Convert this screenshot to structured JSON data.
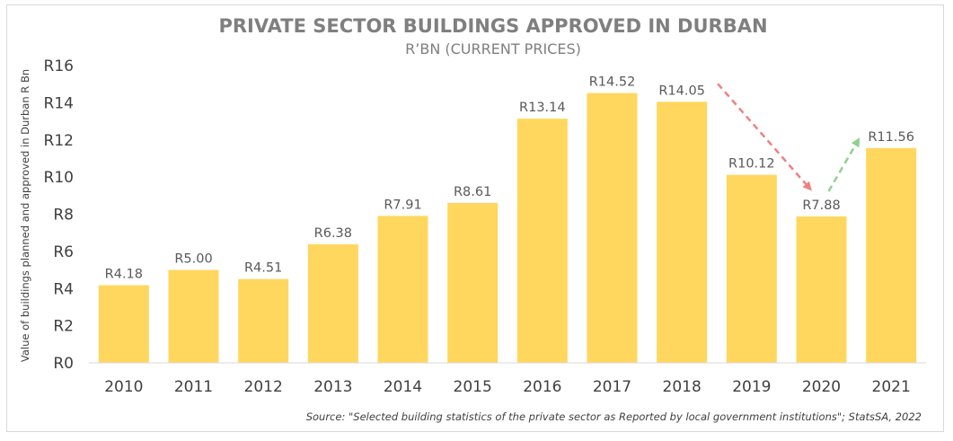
{
  "chart_data": {
    "type": "bar",
    "title": "PRIVATE SECTOR BUILDINGS APPROVED IN DURBAN",
    "subtitle": "R’BN (CURRENT PRICES)",
    "xlabel": "",
    "ylabel": "Value of buildings planned and approved in Durban R Bn",
    "categories": [
      "2010",
      "2011",
      "2012",
      "2013",
      "2014",
      "2015",
      "2016",
      "2017",
      "2018",
      "2019",
      "2020",
      "2021"
    ],
    "values": [
      4.18,
      5.0,
      4.51,
      6.38,
      7.91,
      8.61,
      13.14,
      14.52,
      14.05,
      10.12,
      7.88,
      11.56
    ],
    "data_labels": [
      "R4.18",
      "R5.00",
      "R4.51",
      "R6.38",
      "R7.91",
      "R8.61",
      "R13.14",
      "R14.52",
      "R14.05",
      "R10.12",
      "R7.88",
      "R11.56"
    ],
    "ylim": [
      0,
      16
    ],
    "yticks": [
      0,
      2,
      4,
      6,
      8,
      10,
      12,
      14,
      16
    ],
    "ytick_labels": [
      "R0",
      "R2",
      "R4",
      "R6",
      "R8",
      "R10",
      "R12",
      "R14",
      "R16"
    ],
    "grid": false,
    "legend": "none",
    "annotations": [
      {
        "kind": "dashed-arrow",
        "meaning": "decline",
        "from_category": "2018",
        "to_category": "2020",
        "color": "#f08080"
      },
      {
        "kind": "dashed-arrow",
        "meaning": "recovery",
        "from_category": "2020",
        "to_category": "2021",
        "color": "#8fd18f"
      }
    ],
    "source": "Source: \"Selected building statistics of the private sector as Reported by local government institutions\"; StatsSA, 2022",
    "colors": {
      "bar": "#ffd75e",
      "axis": "#d9d9d9",
      "text": "#404040",
      "title": "#7f7f7f"
    }
  }
}
